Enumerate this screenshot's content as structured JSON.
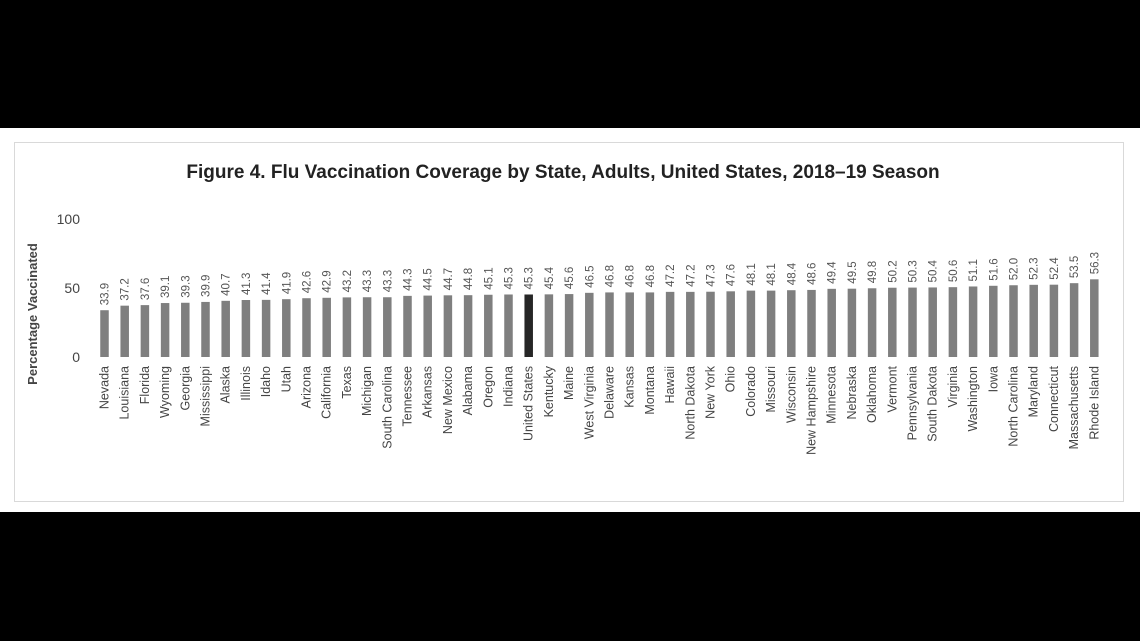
{
  "chart_data": {
    "type": "bar",
    "title": "Figure 4. Flu Vaccination Coverage by State, Adults, United States, 2018–19 Season",
    "ylabel": "Percentage Vaccinated",
    "xlabel": "",
    "ylim": [
      0,
      100
    ],
    "yticks": [
      "0",
      "50",
      "100"
    ],
    "grid": false,
    "bar_color": "#7f7f7f",
    "highlight_color": "#262626",
    "highlight_category": "United States",
    "categories": [
      "Nevada",
      "Louisiana",
      "Florida",
      "Wyoming",
      "Georgia",
      "Mississippi",
      "Alaska",
      "Illinois",
      "Idaho",
      "Utah",
      "Arizona",
      "California",
      "Texas",
      "Michigan",
      "South Carolina",
      "Tennessee",
      "Arkansas",
      "New Mexico",
      "Alabama",
      "Oregon",
      "Indiana",
      "United States",
      "Kentucky",
      "Maine",
      "West Virginia",
      "Delaware",
      "Kansas",
      "Montana",
      "Hawaii",
      "North Dakota",
      "New York",
      "Ohio",
      "Colorado",
      "Missouri",
      "Wisconsin",
      "New Hampshire",
      "Minnesota",
      "Nebraska",
      "Oklahoma",
      "Vermont",
      "Pennsylvania",
      "South Dakota",
      "Virginia",
      "Washington",
      "Iowa",
      "North Carolina",
      "Maryland",
      "Connecticut",
      "Massachusetts",
      "Rhode Island"
    ],
    "values": [
      33.9,
      37.2,
      37.6,
      39.1,
      39.3,
      39.9,
      40.7,
      41.3,
      41.4,
      41.9,
      42.6,
      42.9,
      43.2,
      43.3,
      43.3,
      44.3,
      44.5,
      44.7,
      44.8,
      45.1,
      45.3,
      45.3,
      45.4,
      45.6,
      46.5,
      46.8,
      46.8,
      46.8,
      47.2,
      47.2,
      47.3,
      47.6,
      48.1,
      48.1,
      48.4,
      48.6,
      49.4,
      49.5,
      49.8,
      50.2,
      50.3,
      50.4,
      50.6,
      51.1,
      51.6,
      52.0,
      52.3,
      52.4,
      53.5,
      56.3
    ],
    "value_labels": [
      "33.9",
      "37.2",
      "37.6",
      "39.1",
      "39.3",
      "39.9",
      "40.7",
      "41.3",
      "41.4",
      "41.9",
      "42.6",
      "42.9",
      "43.2",
      "43.3",
      "43.3",
      "44.3",
      "44.5",
      "44.7",
      "44.8",
      "45.1",
      "45.3",
      "45.3",
      "45.4",
      "45.6",
      "46.5",
      "46.8",
      "46.8",
      "46.8",
      "47.2",
      "47.2",
      "47.3",
      "47.6",
      "48.1",
      "48.1",
      "48.4",
      "48.6",
      "49.4",
      "49.5",
      "49.8",
      "50.2",
      "50.3",
      "50.4",
      "50.6",
      "51.1",
      "51.6",
      "52.0",
      "52.3",
      "52.4",
      "53.5",
      "56.3"
    ]
  }
}
